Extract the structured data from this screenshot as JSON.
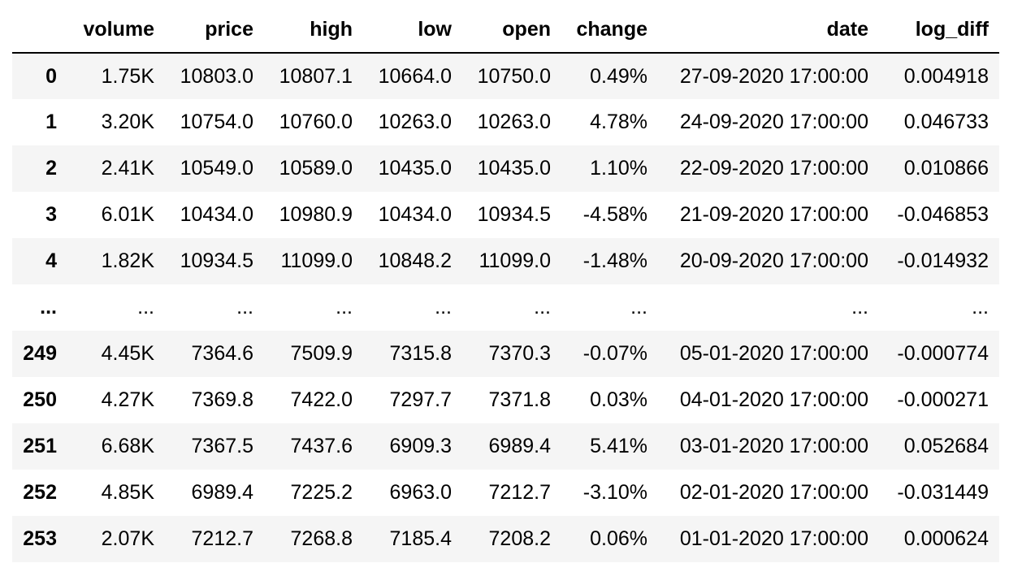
{
  "table": {
    "columns": [
      "",
      "volume",
      "price",
      "high",
      "low",
      "open",
      "change",
      "date",
      "log_diff"
    ],
    "rows": [
      {
        "index": "0",
        "cells": [
          "1.75K",
          "10803.0",
          "10807.1",
          "10664.0",
          "10750.0",
          "0.49%",
          "27-09-2020 17:00:00",
          "0.004918"
        ]
      },
      {
        "index": "1",
        "cells": [
          "3.20K",
          "10754.0",
          "10760.0",
          "10263.0",
          "10263.0",
          "4.78%",
          "24-09-2020 17:00:00",
          "0.046733"
        ]
      },
      {
        "index": "2",
        "cells": [
          "2.41K",
          "10549.0",
          "10589.0",
          "10435.0",
          "10435.0",
          "1.10%",
          "22-09-2020 17:00:00",
          "0.010866"
        ]
      },
      {
        "index": "3",
        "cells": [
          "6.01K",
          "10434.0",
          "10980.9",
          "10434.0",
          "10934.5",
          "-4.58%",
          "21-09-2020 17:00:00",
          "-0.046853"
        ]
      },
      {
        "index": "4",
        "cells": [
          "1.82K",
          "10934.5",
          "11099.0",
          "10848.2",
          "11099.0",
          "-1.48%",
          "20-09-2020 17:00:00",
          "-0.014932"
        ]
      },
      {
        "index": "...",
        "cells": [
          "...",
          "...",
          "...",
          "...",
          "...",
          "...",
          "...",
          "..."
        ]
      },
      {
        "index": "249",
        "cells": [
          "4.45K",
          "7364.6",
          "7509.9",
          "7315.8",
          "7370.3",
          "-0.07%",
          "05-01-2020 17:00:00",
          "-0.000774"
        ]
      },
      {
        "index": "250",
        "cells": [
          "4.27K",
          "7369.8",
          "7422.0",
          "7297.7",
          "7371.8",
          "0.03%",
          "04-01-2020 17:00:00",
          "-0.000271"
        ]
      },
      {
        "index": "251",
        "cells": [
          "6.68K",
          "7367.5",
          "7437.6",
          "6909.3",
          "6989.4",
          "5.41%",
          "03-01-2020 17:00:00",
          "0.052684"
        ]
      },
      {
        "index": "252",
        "cells": [
          "4.85K",
          "6989.4",
          "7225.2",
          "6963.0",
          "7212.7",
          "-3.10%",
          "02-01-2020 17:00:00",
          "-0.031449"
        ]
      },
      {
        "index": "253",
        "cells": [
          "2.07K",
          "7212.7",
          "7268.8",
          "7185.4",
          "7208.2",
          "0.06%",
          "01-01-2020 17:00:00",
          "0.000624"
        ]
      }
    ]
  }
}
